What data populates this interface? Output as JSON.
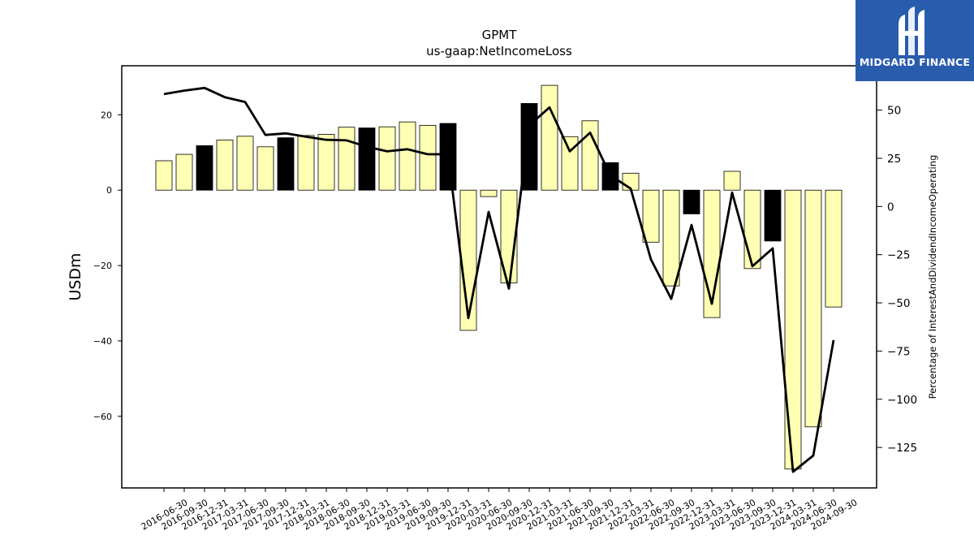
{
  "chart_data": {
    "type": "bar",
    "title": "GPMT",
    "subtitle": "us-gaap:NetIncomeLoss",
    "ylabel": "USDm",
    "y2label": "Percentage of InterestAndDividendIncomeOperating",
    "ylim": [
      -79,
      33
    ],
    "y2lim": [
      -146,
      73
    ],
    "yticks": [
      20,
      0,
      -20,
      -40,
      -60
    ],
    "y2ticks": [
      50,
      25,
      0,
      -25,
      -50,
      -75,
      -100,
      -125
    ],
    "categories": [
      "2016-06-30",
      "2016-09-30",
      "2016-12-31",
      "2017-03-31",
      "2017-06-30",
      "2017-09-30",
      "2017-12-31",
      "2018-03-31",
      "2018-06-30",
      "2018-09-30",
      "2018-12-31",
      "2019-03-31",
      "2019-06-30",
      "2019-09-30",
      "2019-12-31",
      "2020-03-31",
      "2020-06-30",
      "2020-09-30",
      "2020-12-31",
      "2021-03-31",
      "2021-06-30",
      "2021-09-30",
      "2021-12-31",
      "2022-03-31",
      "2022-06-30",
      "2022-09-30",
      "2022-12-31",
      "2023-03-31",
      "2023-06-30",
      "2023-09-30",
      "2023-12-31",
      "2024-03-31",
      "2024-06-30",
      "2024-09-30"
    ],
    "series": [
      {
        "type": "bar",
        "axis": "left",
        "values": [
          7.8,
          9.5,
          11.8,
          13.3,
          14.3,
          11.5,
          13.9,
          14.5,
          14.8,
          16.7,
          16.5,
          16.8,
          18.1,
          17.2,
          17.7,
          -37.2,
          -1.7,
          -24.6,
          23.0,
          27.8,
          14.2,
          18.4,
          7.3,
          4.5,
          -13.8,
          -25.4,
          -6.3,
          -33.8,
          5.0,
          -20.8,
          -13.5,
          -74.0,
          -62.8,
          -31.0
        ],
        "highlighted": [
          false,
          false,
          true,
          false,
          false,
          false,
          true,
          false,
          false,
          false,
          true,
          false,
          false,
          false,
          true,
          false,
          false,
          false,
          true,
          false,
          false,
          false,
          true,
          false,
          false,
          false,
          true,
          false,
          false,
          false,
          true,
          false,
          false,
          false
        ]
      },
      {
        "type": "line",
        "axis": "right",
        "values": [
          58.3,
          60.1,
          61.5,
          56.7,
          54.2,
          37.1,
          37.9,
          36.2,
          34.6,
          34.3,
          31.0,
          28.6,
          29.7,
          27.1,
          27.1,
          -57.9,
          -2.8,
          -42.6,
          42.1,
          51.4,
          28.6,
          38.3,
          16.1,
          9.3,
          -27.5,
          -47.9,
          -9.6,
          -50.5,
          7.2,
          -31.0,
          -21.7,
          -137.6,
          -129.2,
          -69.3
        ]
      }
    ],
    "colors": {
      "bar": "#ffffb3",
      "bar_highlight": "#000000",
      "line": "#000000"
    },
    "legend": "none",
    "grid": false
  },
  "logo": {
    "text": "MIDGARD FINANCE"
  }
}
